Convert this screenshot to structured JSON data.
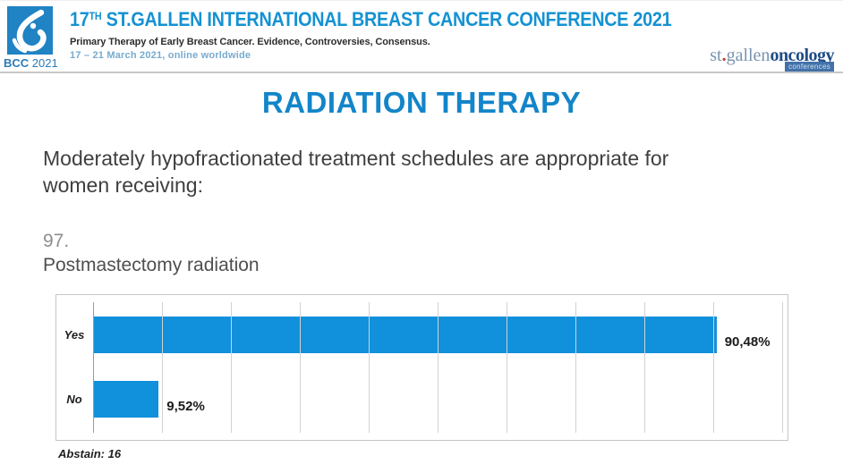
{
  "header": {
    "logo_abbr": "BCC",
    "logo_year": "2021",
    "title_num": "17",
    "title_sup": "TH",
    "title_rest": " ST.GALLEN INTERNATIONAL BREAST CANCER CONFERENCE 2021",
    "subtitle": "Primary Therapy of Early Breast Cancer. Evidence, Controversies, Consensus.",
    "dates": "17 – 21 March 2021, online worldwide",
    "org": {
      "name_light": "st",
      "name_dot": ".",
      "name_mid": "gallen",
      "name_bold": "oncology",
      "badge": "conferences"
    }
  },
  "slide": {
    "title": "RADIATION THERAPY",
    "question_line1": "Moderately hypofractionated treatment schedules are appropriate for",
    "question_line2": "women receiving:",
    "item_number": "97.",
    "item_label": "Postmastectomy radiation",
    "abstain_label": "Abstain: 16"
  },
  "chart_data": {
    "type": "bar",
    "orientation": "horizontal",
    "title": "Postmastectomy radiation",
    "categories": [
      "Yes",
      "No"
    ],
    "values": [
      90.48,
      9.52
    ],
    "value_labels": [
      "90,48%",
      "9,52%"
    ],
    "xlim": [
      0,
      100
    ],
    "gridline_step_percent": 10,
    "grid": true,
    "legend": false,
    "abstain": 16
  },
  "colors": {
    "header_title_blue": "#1592D2",
    "slide_title_blue": "#1385C9",
    "bar_blue": "#1190DB",
    "dates_blue": "#76ABCE",
    "logo_bg_blue": "#1F83C4"
  }
}
